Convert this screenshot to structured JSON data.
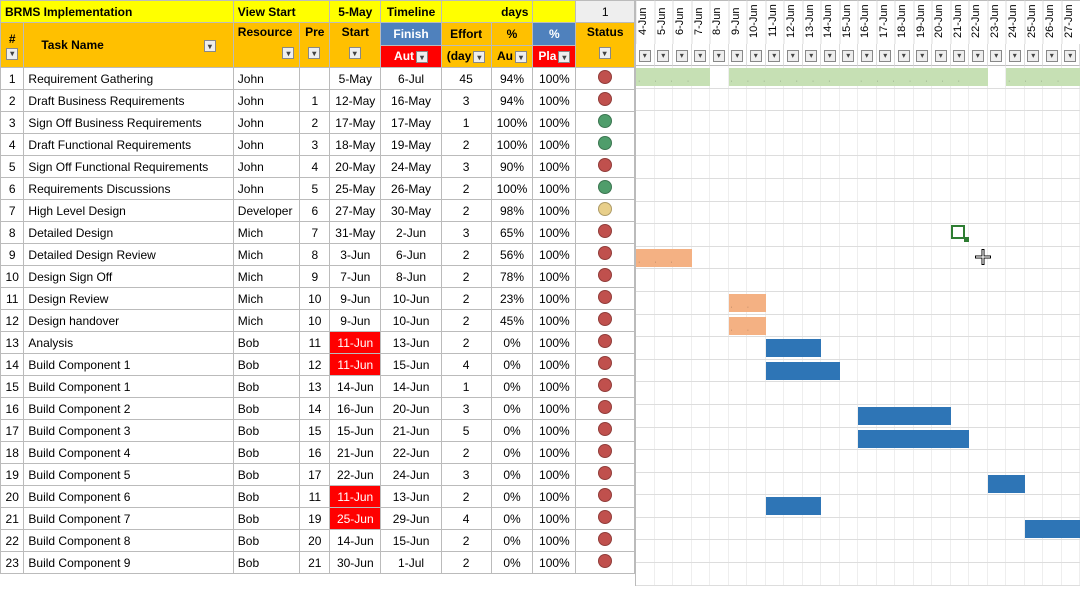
{
  "project_title": "BRMS Implementation",
  "header": {
    "view_start_label": "View Start",
    "view_start_date": "5-May",
    "timeline_label": "Timeline",
    "days_label": "days",
    "days_count": "1",
    "task_name_label": "Task Name",
    "resource_label": "Resource",
    "pre_label": "Pre",
    "start_label": "Start",
    "finish_label": "Finish",
    "aut_label": "Aut",
    "effort_label": "Effort",
    "effort_sub": "(day",
    "pct1_label": "%",
    "pct1_sub": "Au",
    "pct2_label": "%",
    "pct2_sub": "Pla",
    "status_label": "Status",
    "num_label": "#"
  },
  "colors": {
    "status_red": "#c0504d",
    "status_green": "#4f9d6b",
    "status_yellow": "#e8cf8a",
    "gantt_green": "#c6e0b4",
    "gantt_orange": "#f4b183",
    "gantt_blue": "#2e75b6"
  },
  "gantt_dates": [
    "4-Jun",
    "5-Jun",
    "6-Jun",
    "7-Jun",
    "8-Jun",
    "9-Jun",
    "10-Jun",
    "11-Jun",
    "12-Jun",
    "13-Jun",
    "14-Jun",
    "15-Jun",
    "16-Jun",
    "17-Jun",
    "18-Jun",
    "19-Jun",
    "20-Jun",
    "21-Jun",
    "22-Jun",
    "23-Jun",
    "24-Jun",
    "25-Jun",
    "26-Jun",
    "27-Jun"
  ],
  "tasks": [
    {
      "n": 1,
      "name": "Requirement Gathering",
      "res": "John",
      "pre": "",
      "start": "5-May",
      "start_red": false,
      "finish": "6-Jul",
      "effort": 45,
      "pct1": "94%",
      "pct2": "100%",
      "status": "red",
      "bars": [
        {
          "s": 0,
          "w": 4,
          "c": "green",
          "dots": true
        },
        {
          "s": 5,
          "w": 7,
          "c": "green",
          "dots": true
        },
        {
          "s": 12,
          "w": 7,
          "c": "green",
          "dots": true
        },
        {
          "s": 20,
          "w": 4,
          "c": "green",
          "dots": true
        }
      ]
    },
    {
      "n": 2,
      "name": "Draft Business Requirements",
      "res": "John",
      "pre": "1",
      "start": "12-May",
      "start_red": false,
      "finish": "16-May",
      "effort": 3,
      "pct1": "94%",
      "pct2": "100%",
      "status": "red",
      "bars": []
    },
    {
      "n": 3,
      "name": "Sign Off Business Requirements",
      "res": "John",
      "pre": "2",
      "start": "17-May",
      "start_red": false,
      "finish": "17-May",
      "effort": 1,
      "pct1": "100%",
      "pct2": "100%",
      "status": "green",
      "bars": []
    },
    {
      "n": 4,
      "name": "Draft Functional Requirements",
      "res": "John",
      "pre": "3",
      "start": "18-May",
      "start_red": false,
      "finish": "19-May",
      "effort": 2,
      "pct1": "100%",
      "pct2": "100%",
      "status": "green",
      "bars": []
    },
    {
      "n": 5,
      "name": "Sign Off Functional Requirements",
      "res": "John",
      "pre": "4",
      "start": "20-May",
      "start_red": false,
      "finish": "24-May",
      "effort": 3,
      "pct1": "90%",
      "pct2": "100%",
      "status": "red",
      "bars": []
    },
    {
      "n": 6,
      "name": "Requirements Discussions",
      "res": "John",
      "pre": "5",
      "start": "25-May",
      "start_red": false,
      "finish": "26-May",
      "effort": 2,
      "pct1": "100%",
      "pct2": "100%",
      "status": "green",
      "bars": []
    },
    {
      "n": 7,
      "name": "High Level Design",
      "res": "Developer",
      "pre": "6",
      "start": "27-May",
      "start_red": false,
      "finish": "30-May",
      "effort": 2,
      "pct1": "98%",
      "pct2": "100%",
      "status": "yellow",
      "bars": []
    },
    {
      "n": 8,
      "name": "Detailed Design",
      "res": "Mich",
      "pre": "7",
      "start": "31-May",
      "start_red": false,
      "finish": "2-Jun",
      "effort": 3,
      "pct1": "65%",
      "pct2": "100%",
      "status": "red",
      "bars": []
    },
    {
      "n": 9,
      "name": "Detailed Design Review",
      "res": "Mich",
      "pre": "8",
      "start": "3-Jun",
      "start_red": false,
      "finish": "6-Jun",
      "effort": 2,
      "pct1": "56%",
      "pct2": "100%",
      "status": "red",
      "bars": [
        {
          "s": 0,
          "w": 3,
          "c": "orange",
          "dots": true
        }
      ]
    },
    {
      "n": 10,
      "name": "Design Sign Off",
      "res": "Mich",
      "pre": "9",
      "start": "7-Jun",
      "start_red": false,
      "finish": "8-Jun",
      "effort": 2,
      "pct1": "78%",
      "pct2": "100%",
      "status": "red",
      "bars": []
    },
    {
      "n": 11,
      "name": "Design Review",
      "res": "Mich",
      "pre": "10",
      "start": "9-Jun",
      "start_red": false,
      "finish": "10-Jun",
      "effort": 2,
      "pct1": "23%",
      "pct2": "100%",
      "status": "red",
      "bars": [
        {
          "s": 5,
          "w": 2,
          "c": "orange",
          "dots": true
        }
      ]
    },
    {
      "n": 12,
      "name": "Design handover",
      "res": "Mich",
      "pre": "10",
      "start": "9-Jun",
      "start_red": false,
      "finish": "10-Jun",
      "effort": 2,
      "pct1": "45%",
      "pct2": "100%",
      "status": "red",
      "bars": [
        {
          "s": 5,
          "w": 2,
          "c": "orange",
          "dots": true
        }
      ]
    },
    {
      "n": 13,
      "name": "Analysis",
      "res": "Bob",
      "pre": "11",
      "start": "11-Jun",
      "start_red": true,
      "finish": "13-Jun",
      "effort": 2,
      "pct1": "0%",
      "pct2": "100%",
      "status": "red",
      "bars": [
        {
          "s": 7,
          "w": 3,
          "c": "blue"
        }
      ]
    },
    {
      "n": 14,
      "name": "Build Component 1",
      "res": "Bob",
      "pre": "12",
      "start": "11-Jun",
      "start_red": true,
      "finish": "15-Jun",
      "effort": 4,
      "pct1": "0%",
      "pct2": "100%",
      "status": "red",
      "bars": [
        {
          "s": 7,
          "w": 4,
          "c": "blue"
        }
      ]
    },
    {
      "n": 15,
      "name": "Build Component 1",
      "res": "Bob",
      "pre": "13",
      "start": "14-Jun",
      "start_red": false,
      "finish": "14-Jun",
      "effort": 1,
      "pct1": "0%",
      "pct2": "100%",
      "status": "red",
      "bars": []
    },
    {
      "n": 16,
      "name": "Build Component 2",
      "res": "Bob",
      "pre": "14",
      "start": "16-Jun",
      "start_red": false,
      "finish": "20-Jun",
      "effort": 3,
      "pct1": "0%",
      "pct2": "100%",
      "status": "red",
      "bars": [
        {
          "s": 12,
          "w": 5,
          "c": "blue"
        }
      ]
    },
    {
      "n": 17,
      "name": "Build Component 3",
      "res": "Bob",
      "pre": "15",
      "start": "15-Jun",
      "start_red": false,
      "finish": "21-Jun",
      "effort": 5,
      "pct1": "0%",
      "pct2": "100%",
      "status": "red",
      "bars": [
        {
          "s": 12,
          "w": 6,
          "c": "blue"
        }
      ]
    },
    {
      "n": 18,
      "name": "Build Component 4",
      "res": "Bob",
      "pre": "16",
      "start": "21-Jun",
      "start_red": false,
      "finish": "22-Jun",
      "effort": 2,
      "pct1": "0%",
      "pct2": "100%",
      "status": "red",
      "bars": []
    },
    {
      "n": 19,
      "name": "Build Component 5",
      "res": "Bob",
      "pre": "17",
      "start": "22-Jun",
      "start_red": false,
      "finish": "24-Jun",
      "effort": 3,
      "pct1": "0%",
      "pct2": "100%",
      "status": "red",
      "bars": [
        {
          "s": 19,
          "w": 2,
          "c": "blue"
        }
      ]
    },
    {
      "n": 20,
      "name": "Build Component 6",
      "res": "Bob",
      "pre": "11",
      "start": "11-Jun",
      "start_red": true,
      "finish": "13-Jun",
      "effort": 2,
      "pct1": "0%",
      "pct2": "100%",
      "status": "red",
      "bars": [
        {
          "s": 7,
          "w": 3,
          "c": "blue"
        }
      ]
    },
    {
      "n": 21,
      "name": "Build Component 7",
      "res": "Bob",
      "pre": "19",
      "start": "25-Jun",
      "start_red": true,
      "finish": "29-Jun",
      "effort": 4,
      "pct1": "0%",
      "pct2": "100%",
      "status": "red",
      "bars": [
        {
          "s": 21,
          "w": 3,
          "c": "blue"
        }
      ]
    },
    {
      "n": 22,
      "name": "Build Component 8",
      "res": "Bob",
      "pre": "20",
      "start": "14-Jun",
      "start_red": false,
      "finish": "15-Jun",
      "effort": 2,
      "pct1": "0%",
      "pct2": "100%",
      "status": "red",
      "bars": []
    },
    {
      "n": 23,
      "name": "Build Component 9",
      "res": "Bob",
      "pre": "21",
      "start": "30-Jun",
      "start_red": false,
      "finish": "1-Jul",
      "effort": 2,
      "pct1": "0%",
      "pct2": "100%",
      "status": "red",
      "bars": []
    }
  ]
}
